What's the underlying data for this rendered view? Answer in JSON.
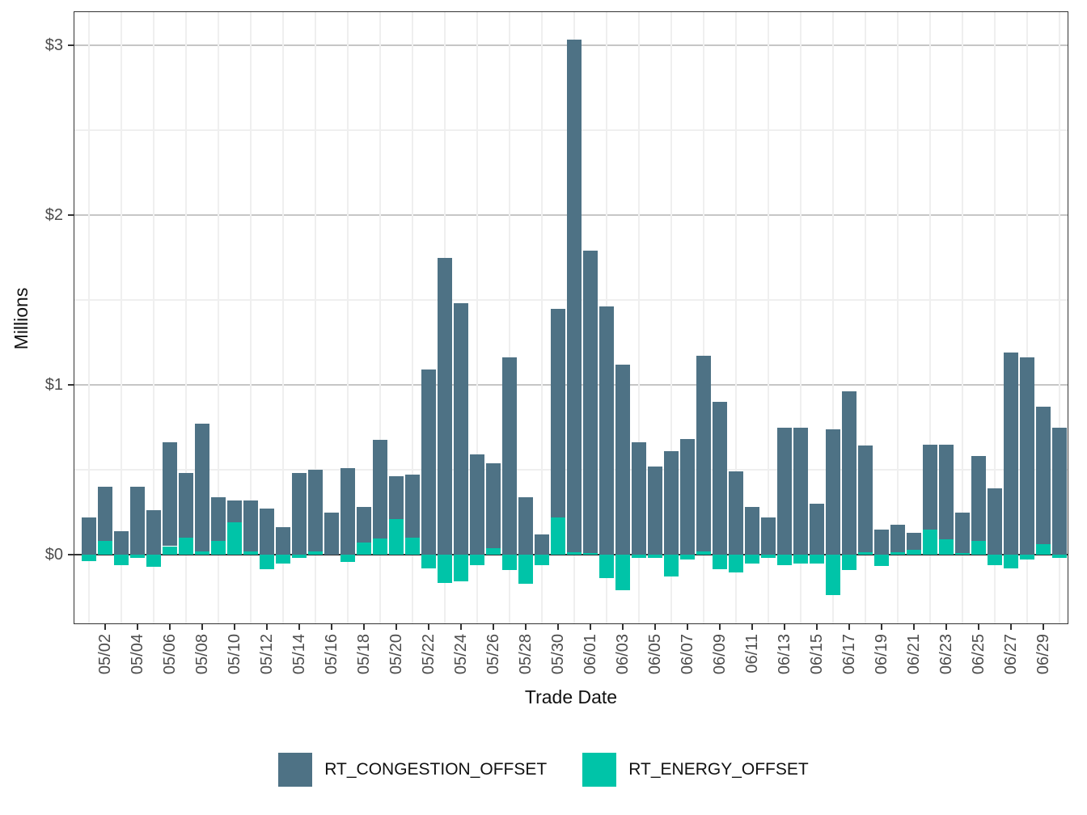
{
  "chart": {
    "y_axis_title": "Millions",
    "x_axis_title": "Trade Date",
    "legend": [
      {
        "label": "RT_CONGESTION_OFFSET",
        "color": "#4e7285"
      },
      {
        "label": "RT_ENERGY_OFFSET",
        "color": "#00c4a8"
      }
    ]
  },
  "chart_data": {
    "type": "bar",
    "stacked": true,
    "title": "",
    "xlabel": "Trade Date",
    "ylabel": "Millions",
    "ylim": [
      -0.41,
      3.2
    ],
    "y_ticks": [
      {
        "value": 0,
        "label": "$0"
      },
      {
        "value": 1,
        "label": "$1"
      },
      {
        "value": 2,
        "label": "$2"
      },
      {
        "value": 3,
        "label": "$3"
      }
    ],
    "y_minor_ticks": [
      0.5,
      1.5,
      2.5
    ],
    "grid": true,
    "legend_position": "bottom",
    "categories": [
      "05/01",
      "05/02",
      "05/03",
      "05/04",
      "05/05",
      "05/06",
      "05/07",
      "05/08",
      "05/09",
      "05/10",
      "05/11",
      "05/12",
      "05/13",
      "05/14",
      "05/15",
      "05/16",
      "05/17",
      "05/18",
      "05/19",
      "05/20",
      "05/21",
      "05/22",
      "05/23",
      "05/24",
      "05/25",
      "05/26",
      "05/27",
      "05/28",
      "05/29",
      "05/30",
      "05/31",
      "06/01",
      "06/02",
      "06/03",
      "06/04",
      "06/05",
      "06/06",
      "06/07",
      "06/08",
      "06/09",
      "06/10",
      "06/11",
      "06/12",
      "06/13",
      "06/14",
      "06/15",
      "06/16",
      "06/17",
      "06/18",
      "06/19",
      "06/20",
      "06/21",
      "06/22",
      "06/23",
      "06/24",
      "06/25",
      "06/26",
      "06/27",
      "06/28",
      "06/29",
      "06/30"
    ],
    "x_tick_labels": [
      "05/02",
      "05/04",
      "05/06",
      "05/08",
      "05/10",
      "05/12",
      "05/14",
      "05/16",
      "05/18",
      "05/20",
      "05/22",
      "05/24",
      "05/26",
      "05/28",
      "05/30",
      "06/01",
      "06/03",
      "06/05",
      "06/07",
      "06/09",
      "06/11",
      "06/13",
      "06/15",
      "06/17",
      "06/19",
      "06/21",
      "06/23",
      "06/25",
      "06/27",
      "06/29"
    ],
    "series": [
      {
        "name": "RT_CONGESTION_OFFSET",
        "color": "#4e7285",
        "values": [
          0.22,
          0.32,
          0.14,
          0.4,
          0.26,
          0.61,
          0.38,
          0.75,
          0.26,
          0.13,
          0.3,
          0.27,
          0.16,
          0.48,
          0.48,
          0.25,
          0.51,
          0.21,
          0.58,
          0.25,
          0.37,
          1.09,
          1.75,
          1.48,
          0.59,
          0.5,
          1.16,
          0.34,
          0.12,
          1.23,
          3.02,
          1.78,
          1.46,
          1.12,
          0.66,
          0.52,
          0.61,
          0.68,
          1.15,
          0.9,
          0.49,
          0.28,
          0.22,
          0.75,
          0.75,
          0.3,
          0.74,
          0.96,
          0.63,
          0.15,
          0.16,
          0.1,
          0.5,
          0.56,
          0.24,
          0.5,
          0.39,
          1.19,
          1.16,
          0.81,
          0.75
        ]
      },
      {
        "name": "RT_ENERGY_OFFSET",
        "color": "#00c4a8",
        "values": [
          -0.04,
          0.08,
          -0.06,
          -0.02,
          -0.07,
          0.05,
          0.1,
          0.02,
          0.08,
          0.19,
          0.02,
          -0.085,
          -0.05,
          -0.02,
          0.02,
          0.0,
          -0.045,
          0.07,
          0.095,
          0.21,
          0.1,
          -0.08,
          -0.165,
          -0.155,
          -0.06,
          0.04,
          -0.09,
          -0.17,
          -0.06,
          0.22,
          0.015,
          0.01,
          -0.14,
          -0.21,
          -0.02,
          -0.02,
          -0.13,
          -0.03,
          0.02,
          -0.085,
          -0.105,
          -0.05,
          -0.02,
          -0.06,
          -0.05,
          -0.05,
          -0.24,
          -0.09,
          0.015,
          -0.065,
          0.015,
          0.03,
          0.15,
          0.09,
          0.01,
          0.08,
          -0.06,
          -0.08,
          -0.03,
          0.06,
          -0.02
        ]
      }
    ]
  }
}
